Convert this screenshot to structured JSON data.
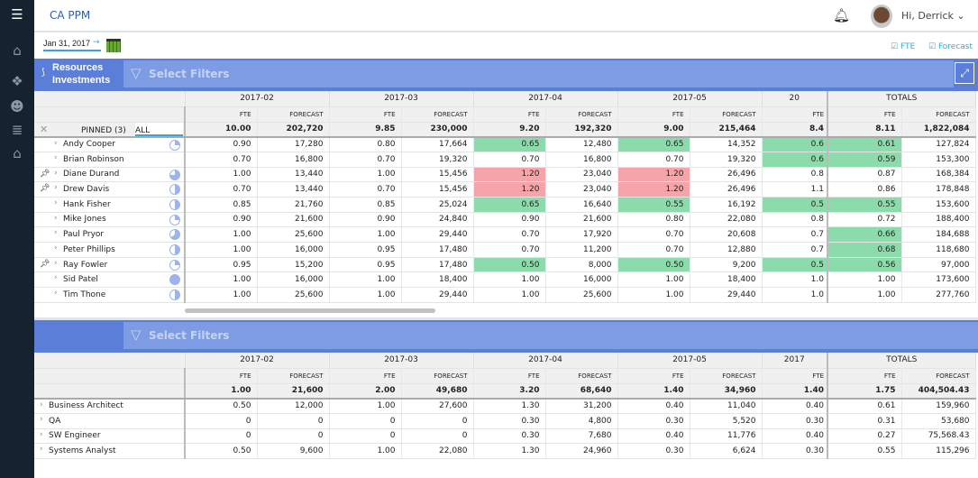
{
  "app": {
    "title": "CA PPM",
    "greeting": "Hi, Derrick",
    "date": "Jan 31, 2017",
    "fte_toggle": "FTE",
    "forecast_toggle": "Forecast"
  },
  "toolbar": {
    "resources": "Resources",
    "investments": "Investments",
    "filter_placeholder": "Select Filters"
  },
  "colors": {
    "over": "#f5a4a9",
    "under": "#8cdbab",
    "accent": "#5b7fd8"
  },
  "top": {
    "months": [
      "2017-02",
      "2017-03",
      "2017-04",
      "2017-05",
      "20"
    ],
    "totals_label": "TOTALS",
    "fte": "FTE",
    "forecast": "FORECAST",
    "pinned_tab": "PINNED (3)",
    "all_tab": "ALL",
    "summary": {
      "cells": [
        [
          "10.00",
          "202,720"
        ],
        [
          "9.85",
          "230,000"
        ],
        [
          "9.20",
          "192,320"
        ],
        [
          "9.00",
          "215,464"
        ]
      ],
      "partial": "8.4",
      "total": [
        "8.11",
        "1,822,084"
      ]
    },
    "rows": [
      {
        "name": "Andy Cooper",
        "pinned": false,
        "alloc": 0.25,
        "cells": [
          [
            "0.90",
            "17,280",
            ""
          ],
          [
            "0.80",
            "17,664",
            ""
          ],
          [
            "0.65",
            "12,480",
            "g"
          ],
          [
            "0.65",
            "14,352",
            "g"
          ]
        ],
        "partial": [
          "0.6",
          "g"
        ],
        "total": [
          "0.61",
          "127,824",
          "g"
        ]
      },
      {
        "name": "Brian Robinson",
        "pinned": false,
        "alloc": null,
        "cells": [
          [
            "0.70",
            "16,800",
            ""
          ],
          [
            "0.70",
            "19,320",
            ""
          ],
          [
            "0.70",
            "16,800",
            ""
          ],
          [
            "0.70",
            "19,320",
            ""
          ]
        ],
        "partial": [
          "0.6",
          "g"
        ],
        "total": [
          "0.59",
          "153,300",
          "g"
        ]
      },
      {
        "name": "Diane Durand",
        "pinned": true,
        "alloc": 0.75,
        "cells": [
          [
            "1.00",
            "13,440",
            ""
          ],
          [
            "1.00",
            "15,456",
            ""
          ],
          [
            "1.20",
            "23,040",
            "r"
          ],
          [
            "1.20",
            "26,496",
            "r"
          ]
        ],
        "partial": [
          "0.8",
          ""
        ],
        "total": [
          "0.87",
          "168,384",
          ""
        ]
      },
      {
        "name": "Drew Davis",
        "pinned": true,
        "alloc": 0.5,
        "cells": [
          [
            "0.70",
            "13,440",
            ""
          ],
          [
            "0.70",
            "15,456",
            ""
          ],
          [
            "1.20",
            "23,040",
            "r"
          ],
          [
            "1.20",
            "26,496",
            "r"
          ]
        ],
        "partial": [
          "1.1",
          ""
        ],
        "total": [
          "0.86",
          "178,848",
          ""
        ]
      },
      {
        "name": "Hank Fisher",
        "pinned": false,
        "alloc": 0.5,
        "cells": [
          [
            "0.85",
            "21,760",
            ""
          ],
          [
            "0.85",
            "25,024",
            ""
          ],
          [
            "0.65",
            "16,640",
            "g"
          ],
          [
            "0.55",
            "16,192",
            "g"
          ]
        ],
        "partial": [
          "0.5",
          "g"
        ],
        "total": [
          "0.55",
          "153,600",
          "g"
        ]
      },
      {
        "name": "Mike Jones",
        "pinned": false,
        "alloc": 0.25,
        "cells": [
          [
            "0.90",
            "21,600",
            ""
          ],
          [
            "0.90",
            "24,840",
            ""
          ],
          [
            "0.90",
            "21,600",
            ""
          ],
          [
            "0.80",
            "22,080",
            ""
          ]
        ],
        "partial": [
          "0.8",
          ""
        ],
        "total": [
          "0.72",
          "188,400",
          ""
        ]
      },
      {
        "name": "Paul Pryor",
        "pinned": false,
        "alloc": 0.65,
        "cells": [
          [
            "1.00",
            "25,600",
            ""
          ],
          [
            "1.00",
            "29,440",
            ""
          ],
          [
            "0.70",
            "17,920",
            ""
          ],
          [
            "0.70",
            "20,608",
            ""
          ]
        ],
        "partial": [
          "0.7",
          ""
        ],
        "total": [
          "0.66",
          "184,688",
          "g"
        ]
      },
      {
        "name": "Peter Phillips",
        "pinned": false,
        "alloc": 0.5,
        "cells": [
          [
            "1.00",
            "16,000",
            ""
          ],
          [
            "0.95",
            "17,480",
            ""
          ],
          [
            "0.70",
            "11,200",
            ""
          ],
          [
            "0.70",
            "12,880",
            ""
          ]
        ],
        "partial": [
          "0.7",
          ""
        ],
        "total": [
          "0.68",
          "118,680",
          "g"
        ]
      },
      {
        "name": "Ray Fowler",
        "pinned": true,
        "alloc": 0.25,
        "cells": [
          [
            "0.95",
            "15,200",
            ""
          ],
          [
            "0.95",
            "17,480",
            ""
          ],
          [
            "0.50",
            "8,000",
            "g"
          ],
          [
            "0.50",
            "9,200",
            "g"
          ]
        ],
        "partial": [
          "0.5",
          "g"
        ],
        "total": [
          "0.56",
          "97,000",
          "g"
        ]
      },
      {
        "name": "Sid Patel",
        "pinned": false,
        "alloc": 1,
        "cells": [
          [
            "1.00",
            "16,000",
            ""
          ],
          [
            "1.00",
            "18,400",
            ""
          ],
          [
            "1.00",
            "16,000",
            ""
          ],
          [
            "1.00",
            "18,400",
            ""
          ]
        ],
        "partial": [
          "1.0",
          ""
        ],
        "total": [
          "1.00",
          "173,600",
          ""
        ]
      },
      {
        "name": "Tim Thone",
        "pinned": false,
        "alloc": 0.5,
        "cells": [
          [
            "1.00",
            "25,600",
            ""
          ],
          [
            "1.00",
            "29,440",
            ""
          ],
          [
            "1.00",
            "25,600",
            ""
          ],
          [
            "1.00",
            "29,440",
            ""
          ]
        ],
        "partial": [
          "1.0",
          ""
        ],
        "total": [
          "1.00",
          "277,760",
          ""
        ]
      }
    ]
  },
  "bottom": {
    "months": [
      "2017-02",
      "2017-03",
      "2017-04",
      "2017-05",
      "2017"
    ],
    "summary": {
      "cells": [
        [
          "1.00",
          "21,600"
        ],
        [
          "2.00",
          "49,680"
        ],
        [
          "3.20",
          "68,640"
        ],
        [
          "1.40",
          "34,960"
        ]
      ],
      "partial": "1.40",
      "total": [
        "1.75",
        "404,504.43"
      ]
    },
    "rows": [
      {
        "name": "Business Architect",
        "cells": [
          [
            "0.50",
            "12,000",
            ""
          ],
          [
            "1.00",
            "27,600",
            ""
          ],
          [
            "1.30",
            "31,200",
            ""
          ],
          [
            "0.40",
            "11,040",
            ""
          ]
        ],
        "partial": [
          "0.40",
          ""
        ],
        "total": [
          "0.61",
          "159,960",
          ""
        ]
      },
      {
        "name": "QA",
        "cells": [
          [
            "0",
            "0",
            ""
          ],
          [
            "0",
            "0",
            ""
          ],
          [
            "0.30",
            "4,800",
            ""
          ],
          [
            "0.30",
            "5,520",
            ""
          ]
        ],
        "partial": [
          "0.30",
          ""
        ],
        "total": [
          "0.31",
          "53,680",
          ""
        ]
      },
      {
        "name": "SW Engineer",
        "cells": [
          [
            "0",
            "0",
            ""
          ],
          [
            "0",
            "0",
            ""
          ],
          [
            "0.30",
            "7,680",
            ""
          ],
          [
            "0.40",
            "11,776",
            ""
          ]
        ],
        "partial": [
          "0.40",
          ""
        ],
        "total": [
          "0.27",
          "75,568.43",
          ""
        ]
      },
      {
        "name": "Systems Analyst",
        "cells": [
          [
            "0.50",
            "9,600",
            ""
          ],
          [
            "1.00",
            "22,080",
            ""
          ],
          [
            "1.30",
            "24,960",
            ""
          ],
          [
            "0.30",
            "6,624",
            ""
          ]
        ],
        "partial": [
          "0.30",
          ""
        ],
        "total": [
          "0.55",
          "115,296",
          ""
        ]
      }
    ]
  }
}
